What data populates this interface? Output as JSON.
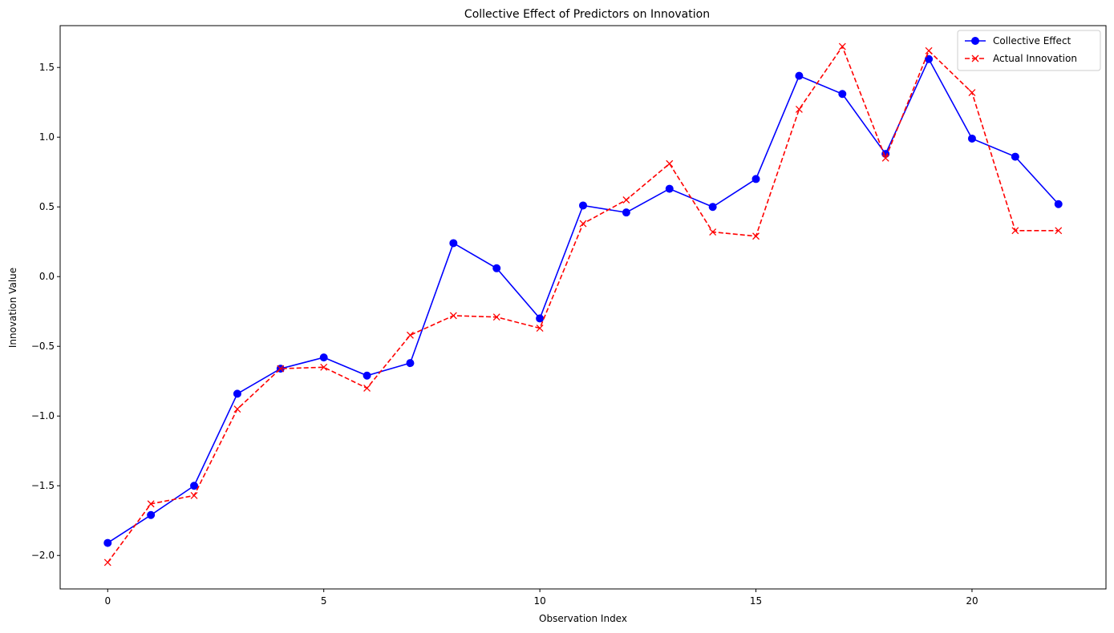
{
  "chart_data": {
    "type": "line",
    "title": "Collective Effect of Predictors on Innovation",
    "xlabel": "Observation Index",
    "ylabel": "Innovation Value",
    "x": [
      0,
      1,
      2,
      3,
      4,
      5,
      6,
      7,
      8,
      9,
      10,
      11,
      12,
      13,
      14,
      15,
      16,
      17,
      18,
      19,
      20,
      21,
      22
    ],
    "xlim": [
      -1.1,
      23.1
    ],
    "ylim": [
      -2.24,
      1.8
    ],
    "xticks": [
      0,
      5,
      10,
      15,
      20
    ],
    "xtick_labels": [
      "0",
      "5",
      "10",
      "15",
      "20"
    ],
    "yticks": [
      -2.0,
      -1.5,
      -1.0,
      -0.5,
      0.0,
      0.5,
      1.0,
      1.5
    ],
    "ytick_labels": [
      "−2.0",
      "−1.5",
      "−1.0",
      "−0.5",
      "0.0",
      "0.5",
      "1.0",
      "1.5"
    ],
    "grid": false,
    "legend_position": "top-right",
    "series": [
      {
        "name": "Collective Effect",
        "color": "#0000ff",
        "marker": "circle",
        "linestyle": "solid",
        "values": [
          -1.91,
          -1.71,
          -1.5,
          -0.84,
          -0.66,
          -0.58,
          -0.71,
          -0.62,
          0.24,
          0.06,
          -0.3,
          0.51,
          0.46,
          0.63,
          0.5,
          0.7,
          1.44,
          1.31,
          0.88,
          1.56,
          0.99,
          0.86,
          0.52
        ]
      },
      {
        "name": "Actual Innovation",
        "color": "#ff0000",
        "marker": "x",
        "linestyle": "dashed",
        "values": [
          -2.05,
          -1.63,
          -1.57,
          -0.95,
          -0.66,
          -0.65,
          -0.8,
          -0.42,
          -0.28,
          -0.29,
          -0.37,
          0.38,
          0.55,
          0.81,
          0.32,
          0.29,
          1.2,
          1.65,
          0.85,
          1.62,
          1.32,
          0.33,
          0.33
        ]
      }
    ]
  }
}
